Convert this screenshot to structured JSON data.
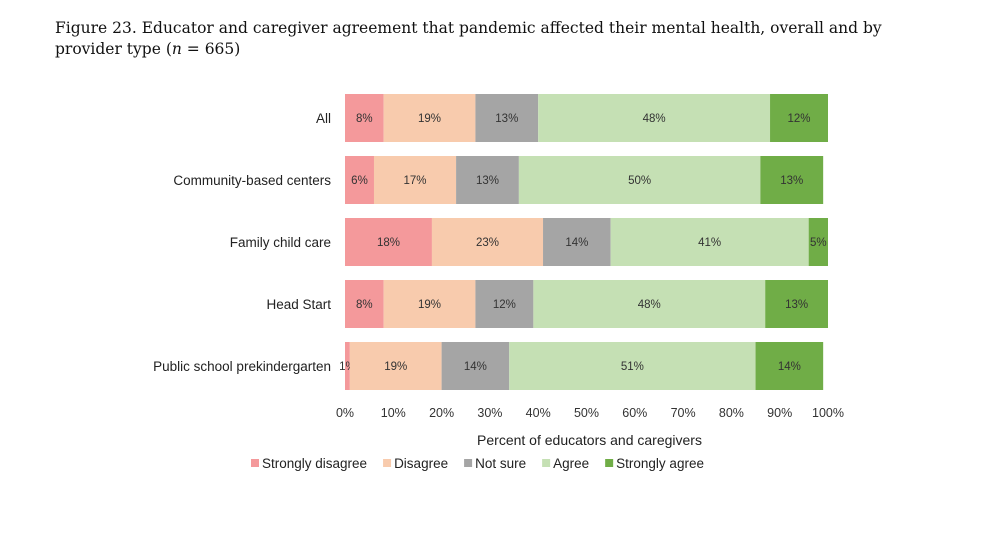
{
  "figure": {
    "title_prefix": "Figure 23. Educator and caregiver agreement that pandemic affected their mental health, overall and by provider type (",
    "title_n_symbol": "n",
    "title_suffix": " = 665)"
  },
  "chart_data": {
    "type": "bar",
    "orientation": "horizontal",
    "stacked": true,
    "categories": [
      "All",
      "Community-based centers",
      "Family child care",
      "Head Start",
      "Public school prekindergarten"
    ],
    "series": [
      {
        "name": "Strongly disagree",
        "color": "#f4999b",
        "values": [
          8,
          6,
          18,
          8,
          1
        ],
        "labels": [
          "8%",
          "6%",
          "18%",
          "8%",
          "1%"
        ]
      },
      {
        "name": "Disagree",
        "color": "#f8cbad",
        "values": [
          19,
          17,
          23,
          19,
          19
        ],
        "labels": [
          "19%",
          "17%",
          "23%",
          "19%",
          "19%"
        ]
      },
      {
        "name": "Not sure",
        "color": "#a5a5a5",
        "values": [
          13,
          13,
          14,
          12,
          14
        ],
        "labels": [
          "13%",
          "13%",
          "14%",
          "12%",
          "14%"
        ]
      },
      {
        "name": "Agree",
        "color": "#c5e0b4",
        "values": [
          48,
          50,
          41,
          48,
          51
        ],
        "labels": [
          "48%",
          "50%",
          "41%",
          "48%",
          "51%"
        ]
      },
      {
        "name": "Strongly agree",
        "color": "#70ad47",
        "values": [
          12,
          13,
          5,
          13,
          14
        ],
        "labels": [
          "12%",
          "13%",
          "5%",
          "13%",
          "14%"
        ]
      }
    ],
    "xlim": [
      0,
      100
    ],
    "xticks": [
      "0%",
      "10%",
      "20%",
      "30%",
      "40%",
      "50%",
      "60%",
      "70%",
      "80%",
      "90%",
      "100%"
    ],
    "xlabel": "Percent of educators and caregivers",
    "ylabel": "",
    "grid": false,
    "legend": "bottom"
  }
}
